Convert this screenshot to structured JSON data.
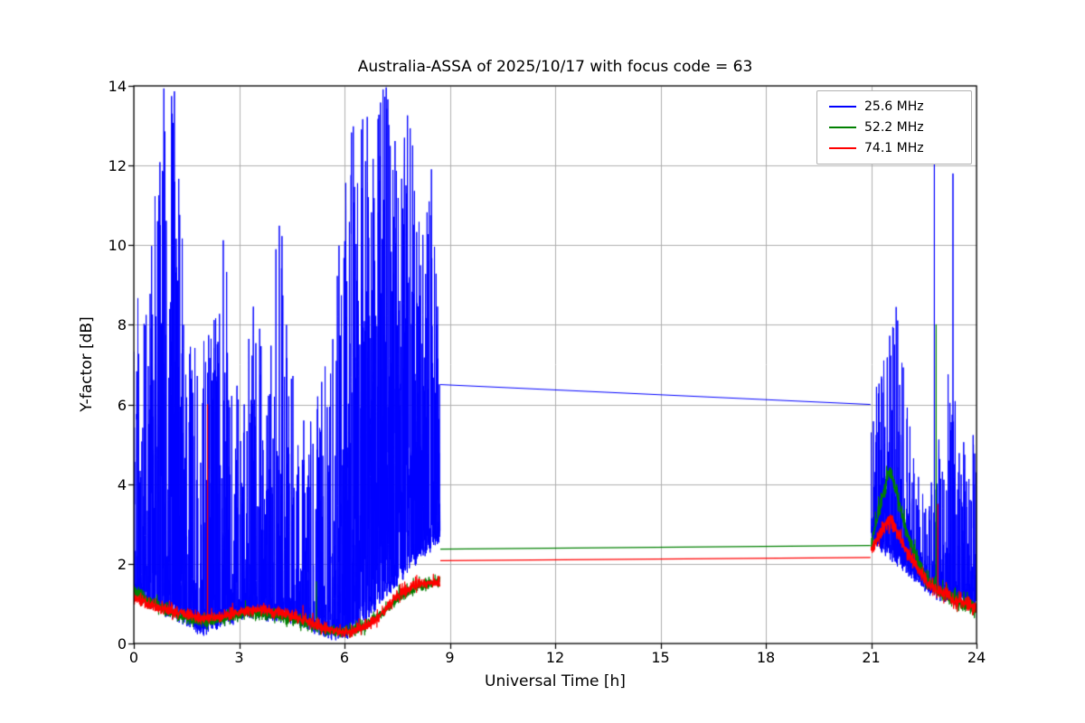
{
  "chart_data": {
    "type": "line",
    "title": "Australia-ASSA of 2025/10/17 with focus code = 63",
    "xlabel": "Universal Time [h]",
    "ylabel": "Y-factor [dB]",
    "xlim": [
      0,
      24
    ],
    "ylim": [
      0,
      14
    ],
    "xticks": [
      0,
      3,
      6,
      9,
      12,
      15,
      18,
      21,
      24
    ],
    "yticks": [
      0,
      2,
      4,
      6,
      8,
      10,
      12,
      14
    ],
    "grid": true,
    "grid_color": "#b0b0b0",
    "legend_position": "upper right",
    "series": [
      {
        "name": "25.6 MHz",
        "color": "#0000ff",
        "linewidth": 1.0,
        "segments": [
          {
            "type": "noisy",
            "x0": 0.0,
            "x1": 8.72,
            "dt": 0.004,
            "base": [
              [
                0,
                1.3
              ],
              [
                0.5,
                0.9
              ],
              [
                1,
                0.7
              ],
              [
                1.5,
                0.45
              ],
              [
                2,
                0.25
              ],
              [
                2.5,
                0.45
              ],
              [
                3,
                0.6
              ],
              [
                3.5,
                0.7
              ],
              [
                4,
                0.6
              ],
              [
                4.5,
                0.55
              ],
              [
                5,
                0.4
              ],
              [
                5.5,
                0.15
              ],
              [
                6,
                0.1
              ],
              [
                6.5,
                0.5
              ],
              [
                7,
                1.0
              ],
              [
                7.5,
                1.5
              ],
              [
                8,
                2.0
              ],
              [
                8.72,
                2.6
              ]
            ],
            "peak": [
              [
                0,
                9.2
              ],
              [
                0.4,
                8.6
              ],
              [
                0.8,
                14
              ],
              [
                1.15,
                14
              ],
              [
                1.35,
                12.2
              ],
              [
                1.6,
                7.5
              ],
              [
                2,
                7.7
              ],
              [
                2.4,
                8.6
              ],
              [
                2.55,
                11.1
              ],
              [
                2.8,
                7.0
              ],
              [
                3.1,
                6.0
              ],
              [
                3.45,
                9.3
              ],
              [
                3.8,
                6.5
              ],
              [
                4.15,
                11.4
              ],
              [
                4.5,
                7.0
              ],
              [
                4.9,
                5.5
              ],
              [
                5.3,
                6.5
              ],
              [
                5.7,
                8.5
              ],
              [
                6.1,
                13.0
              ],
              [
                6.4,
                14
              ],
              [
                7.2,
                14
              ],
              [
                7.6,
                12.0
              ],
              [
                7.9,
                14
              ],
              [
                8.2,
                10.0
              ],
              [
                8.45,
                12.5
              ],
              [
                8.72,
                7.5
              ]
            ],
            "density": [
              [
                0,
                0.55
              ],
              [
                1,
                0.6
              ],
              [
                2,
                0.5
              ],
              [
                3,
                0.45
              ],
              [
                4,
                0.5
              ],
              [
                5,
                0.45
              ],
              [
                5.8,
                0.55
              ],
              [
                6.3,
                0.82
              ],
              [
                7,
                0.85
              ],
              [
                7.7,
                0.75
              ],
              [
                8.3,
                0.6
              ],
              [
                8.72,
                0.55
              ]
            ],
            "jitter": 0.25,
            "tail": 1.7,
            "spikes": []
          },
          {
            "type": "line",
            "points": [
              [
                8.73,
                6.5
              ],
              [
                20.98,
                6.0
              ]
            ]
          },
          {
            "type": "noisy",
            "x0": 21.0,
            "x1": 24.0,
            "dt": 0.004,
            "base": [
              [
                21,
                2.6
              ],
              [
                21.5,
                2.2
              ],
              [
                22,
                1.8
              ],
              [
                22.5,
                1.4
              ],
              [
                23,
                1.1
              ],
              [
                23.5,
                1.0
              ],
              [
                24,
                0.9
              ]
            ],
            "peak": [
              [
                21,
                5.5
              ],
              [
                21.3,
                7.5
              ],
              [
                21.7,
                8.9
              ],
              [
                22,
                6.5
              ],
              [
                22.3,
                4.5
              ],
              [
                22.6,
                3.5
              ],
              [
                23,
                5.5
              ],
              [
                23.2,
                7.0
              ],
              [
                23.45,
                7.0
              ],
              [
                23.7,
                4.5
              ],
              [
                24,
                5.6
              ]
            ],
            "density": [
              [
                21,
                0.5
              ],
              [
                22,
                0.45
              ],
              [
                23,
                0.5
              ],
              [
                24,
                0.5
              ]
            ],
            "jitter": 0.25,
            "tail": 1.7,
            "spikes": [
              [
                22.8,
                12.4
              ],
              [
                23.33,
                11.8
              ]
            ]
          }
        ]
      },
      {
        "name": "52.2 MHz",
        "color": "#008000",
        "linewidth": 1.2,
        "segments": [
          {
            "type": "noisy",
            "x0": 0.0,
            "x1": 8.72,
            "dt": 0.006,
            "base": [
              [
                0,
                1.3
              ],
              [
                0.5,
                1.0
              ],
              [
                1,
                0.8
              ],
              [
                1.5,
                0.62
              ],
              [
                2,
                0.55
              ],
              [
                2.5,
                0.62
              ],
              [
                3,
                0.72
              ],
              [
                3.5,
                0.75
              ],
              [
                4,
                0.7
              ],
              [
                4.5,
                0.6
              ],
              [
                5,
                0.5
              ],
              [
                5.5,
                0.33
              ],
              [
                6,
                0.28
              ],
              [
                6.5,
                0.4
              ],
              [
                7,
                0.7
              ],
              [
                7.5,
                1.1
              ],
              [
                8,
                1.4
              ],
              [
                8.72,
                1.6
              ]
            ],
            "amp": 0.07,
            "spike_amp": 0.25,
            "spike_p": 0.05,
            "spikes": [
              [
                5.2,
                1.55
              ]
            ]
          },
          {
            "type": "line",
            "points": [
              [
                8.73,
                2.37
              ],
              [
                20.98,
                2.46
              ]
            ]
          },
          {
            "type": "noisy",
            "x0": 21.0,
            "x1": 24.0,
            "dt": 0.006,
            "base": [
              [
                21,
                2.5
              ],
              [
                21.2,
                3.2
              ],
              [
                21.5,
                4.35
              ],
              [
                21.7,
                3.9
              ],
              [
                22,
                2.8
              ],
              [
                22.3,
                2.1
              ],
              [
                22.6,
                1.6
              ],
              [
                23,
                1.25
              ],
              [
                23.5,
                1.05
              ],
              [
                24,
                0.85
              ]
            ],
            "amp": 0.09,
            "spike_amp": 0.3,
            "spike_p": 0.06,
            "spikes": [
              [
                22.85,
                8.0
              ]
            ]
          }
        ]
      },
      {
        "name": "74.1 MHz",
        "color": "#ff0000",
        "linewidth": 1.2,
        "segments": [
          {
            "type": "noisy",
            "x0": 0.0,
            "x1": 8.72,
            "dt": 0.006,
            "base": [
              [
                0,
                1.15
              ],
              [
                0.5,
                0.95
              ],
              [
                1,
                0.82
              ],
              [
                1.5,
                0.72
              ],
              [
                2,
                0.62
              ],
              [
                2.5,
                0.68
              ],
              [
                3,
                0.8
              ],
              [
                3.5,
                0.85
              ],
              [
                4,
                0.8
              ],
              [
                4.5,
                0.7
              ],
              [
                5,
                0.55
              ],
              [
                5.5,
                0.35
              ],
              [
                6,
                0.27
              ],
              [
                6.5,
                0.38
              ],
              [
                7,
                0.68
              ],
              [
                7.5,
                1.2
              ],
              [
                8,
                1.45
              ],
              [
                8.72,
                1.55
              ]
            ],
            "amp": 0.07,
            "spike_amp": 0.25,
            "spike_p": 0.05,
            "spikes": [
              [
                2.1,
                6.0
              ]
            ]
          },
          {
            "type": "line",
            "points": [
              [
                8.73,
                2.08
              ],
              [
                20.98,
                2.16
              ]
            ]
          },
          {
            "type": "noisy",
            "x0": 21.0,
            "x1": 24.0,
            "dt": 0.006,
            "base": [
              [
                21,
                2.3
              ],
              [
                21.2,
                2.7
              ],
              [
                21.5,
                3.1
              ],
              [
                21.7,
                2.9
              ],
              [
                22,
                2.3
              ],
              [
                22.3,
                1.9
              ],
              [
                22.6,
                1.5
              ],
              [
                23,
                1.25
              ],
              [
                23.5,
                1.05
              ],
              [
                24,
                0.9
              ]
            ],
            "amp": 0.09,
            "spike_amp": 0.25,
            "spike_p": 0.05,
            "spikes": [
              [
                22.9,
                3.5
              ]
            ]
          }
        ]
      }
    ]
  }
}
